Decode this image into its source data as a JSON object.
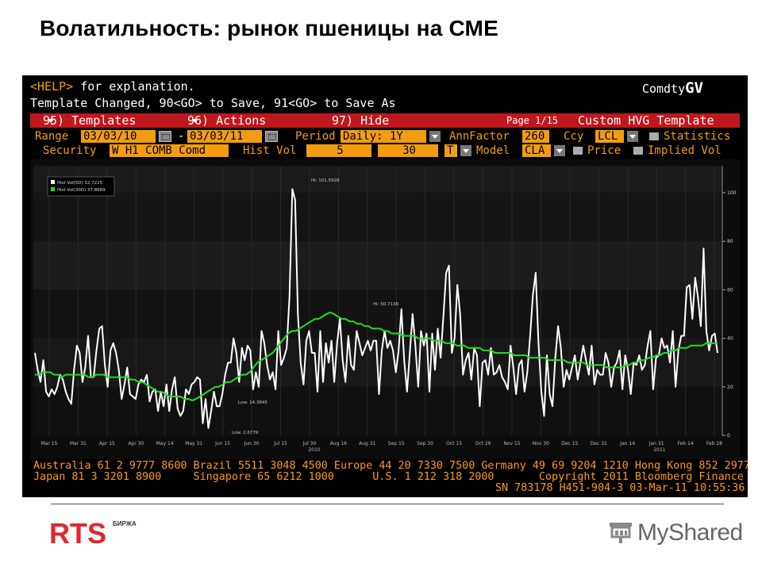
{
  "slide": {
    "title": "Волатильность: рынок пшеницы на СМЕ"
  },
  "terminal": {
    "help_prefix": "<HELP>",
    "help_suffix": " for explanation.",
    "template_changed": "Template Changed, 90<GO> to Save, 91<GO> to Save As",
    "brand_prefix": "Comdty",
    "brand_suffix": "GV",
    "menu": {
      "templates": "95) Templates",
      "actions": "96) Actions",
      "hide": "97) Hide",
      "page": "Page 1/15",
      "custom": "Custom HVG Template"
    },
    "row1": {
      "range_label": "Range",
      "start_date": "03/03/10",
      "dash": "-",
      "end_date": "03/03/11",
      "period_label": "Period",
      "period_value": "Daily: 1Y",
      "annfactor_label": "AnnFactor",
      "annfactor_value": "260",
      "ccy_label": "Ccy",
      "ccy_value": "LCL",
      "statistics_label": "Statistics"
    },
    "row2": {
      "security_label": "Security",
      "security_value": "W H1 COMB Comd",
      "histvol_label": "Hist Vol",
      "hv1": "5",
      "hv2": "30",
      "t_value": "T",
      "model_label": "Model",
      "model_value": "CLA",
      "price_label": "Price",
      "implied_label": "Implied Vol"
    },
    "footer": {
      "line1": "Australia 61 2 9777 8600 Brazil 5511 3048 4500 Europe 44 20 7330 7500 Germany 49 69 9204 1210 Hong Kong 852 2977 6000",
      "line2": "Japan 81 3 3201 8900     Singapore 65 6212 1000      U.S. 1 212 318 2000       Copyright 2011 Bloomberg Finance L.P.",
      "line3": "SN 783178 H451-904-3 03-Mar-11 10:55:36"
    }
  },
  "chart_data": {
    "type": "line",
    "legend": [
      "Hist Vol(5D)  32.7225",
      "Hist Vol(30D)  37.8689"
    ],
    "legend_placement": "top-left",
    "ylim": [
      0,
      100
    ],
    "y_ticks": [
      "100",
      "80",
      "60",
      "40",
      "20",
      "0"
    ],
    "x_ticks": [
      "Mar 15",
      "Mar 31",
      "Apr 15",
      "Apr 30",
      "May 14",
      "May 31",
      "Jun 15",
      "Jun 30",
      "Jul 15",
      "Jul 30",
      "Aug 16",
      "Aug 31",
      "Sep 15",
      "Sep 30",
      "Oct 15",
      "Oct 29",
      "Nov 15",
      "Nov 30",
      "Dec 15",
      "Dec 31",
      "Jan 14",
      "Jan 31",
      "Feb 14",
      "Feb 28"
    ],
    "year_labels": [
      "2010",
      "2011"
    ],
    "annotations": {
      "hi_5d": "Hi: 101.5928",
      "lo_5d": "Low: 2.6779",
      "hi_30d": "Hi: 50.7138",
      "lo_30d": "Low: 14.3845"
    },
    "colors": {
      "vol5": "#ffffff",
      "vol30": "#22dd22"
    },
    "series": [
      {
        "name": "Hist Vol(5D)",
        "values": [
          34,
          27,
          22,
          31,
          18,
          16,
          19,
          17,
          20,
          25,
          23,
          18,
          15,
          13,
          27,
          37,
          34,
          22,
          28,
          41,
          24,
          24,
          35,
          44,
          45,
          29,
          20,
          35,
          38,
          34,
          27,
          15,
          21,
          28,
          17,
          16,
          15,
          21,
          23,
          22,
          25,
          14,
          18,
          19,
          10,
          18,
          12,
          21,
          10,
          19,
          24,
          11,
          8,
          10,
          19,
          17,
          21,
          22,
          24,
          23,
          5,
          15,
          3,
          10,
          18,
          12,
          12,
          17,
          25,
          30,
          30,
          40,
          34,
          22,
          36,
          31,
          37,
          35,
          19,
          26,
          20,
          43,
          38,
          29,
          23,
          26,
          19,
          43,
          29,
          32,
          36,
          57,
          101.5,
          97,
          50,
          30,
          21,
          39,
          43,
          34,
          34,
          18,
          43,
          22,
          38,
          30,
          39,
          22,
          38,
          48,
          31,
          22,
          41,
          29,
          27,
          43,
          38,
          33,
          36,
          39,
          35,
          39,
          39,
          17,
          35,
          43,
          36,
          39,
          35,
          26,
          35,
          52,
          31,
          18,
          34,
          50,
          37,
          20,
          43,
          37,
          42,
          18,
          42,
          27,
          44,
          32,
          49,
          67,
          70,
          34,
          40,
          62,
          50,
          25,
          31,
          34,
          23,
          36,
          33,
          12,
          30,
          31,
          25,
          36,
          25,
          26,
          29,
          24,
          22,
          19,
          37,
          28,
          17,
          29,
          31,
          18,
          26,
          41,
          58,
          67,
          38,
          18,
          8,
          33,
          17,
          12,
          32,
          45,
          36,
          20,
          27,
          23,
          28,
          33,
          23,
          30,
          37,
          31,
          25,
          37,
          21,
          27,
          25,
          25,
          34,
          30,
          20,
          28,
          30,
          35,
          19,
          33,
          27,
          17,
          30,
          29,
          33,
          27,
          29,
          37,
          43,
          19,
          32,
          33,
          40,
          36,
          37,
          30,
          43,
          20,
          35,
          41,
          41,
          61,
          62,
          48,
          65,
          57,
          45,
          77,
          43,
          35,
          41,
          42,
          34
        ]
      },
      {
        "name": "Hist Vol(30D)",
        "values": [
          25,
          25,
          26,
          26,
          26,
          25,
          25,
          24,
          25,
          25,
          25,
          25,
          25,
          25,
          24,
          24,
          25,
          25,
          25,
          24,
          24,
          24,
          24,
          24,
          24,
          23,
          23,
          22,
          22,
          21,
          20,
          19,
          18,
          18,
          17,
          16,
          16,
          16,
          16,
          15,
          15,
          14.4,
          15,
          16,
          17,
          18,
          19,
          20,
          20,
          21,
          22,
          22,
          23,
          24,
          25,
          25,
          26,
          28,
          30,
          31,
          32,
          33,
          34,
          36,
          38,
          40,
          42,
          43,
          43,
          44,
          45,
          46,
          47,
          48,
          48,
          49,
          50,
          50.7,
          50,
          49,
          48,
          48,
          47,
          47,
          46,
          46,
          45,
          45,
          44,
          44,
          44,
          43,
          43,
          42,
          42,
          42,
          41,
          41,
          41,
          41,
          40,
          40,
          40,
          40,
          39,
          39,
          39,
          38,
          38,
          38,
          37,
          37,
          37,
          36,
          36,
          36,
          36,
          35,
          35,
          35,
          34,
          34,
          34,
          34,
          34,
          33,
          33,
          33,
          33,
          32,
          32,
          32,
          32,
          32,
          31,
          31,
          31,
          31,
          31,
          30,
          30,
          30,
          30,
          30,
          29,
          29,
          29,
          29,
          29,
          28,
          28,
          28,
          28,
          28,
          29,
          29,
          30,
          30,
          31,
          31,
          32,
          32,
          33,
          33,
          34,
          34,
          35,
          35,
          36,
          36,
          36,
          37,
          37,
          37,
          37,
          38,
          38,
          38,
          38
        ]
      }
    ]
  },
  "logos": {
    "rts_text": "RTS",
    "rts_sub": "БИРЖА",
    "myshared_text": "MyShared"
  }
}
